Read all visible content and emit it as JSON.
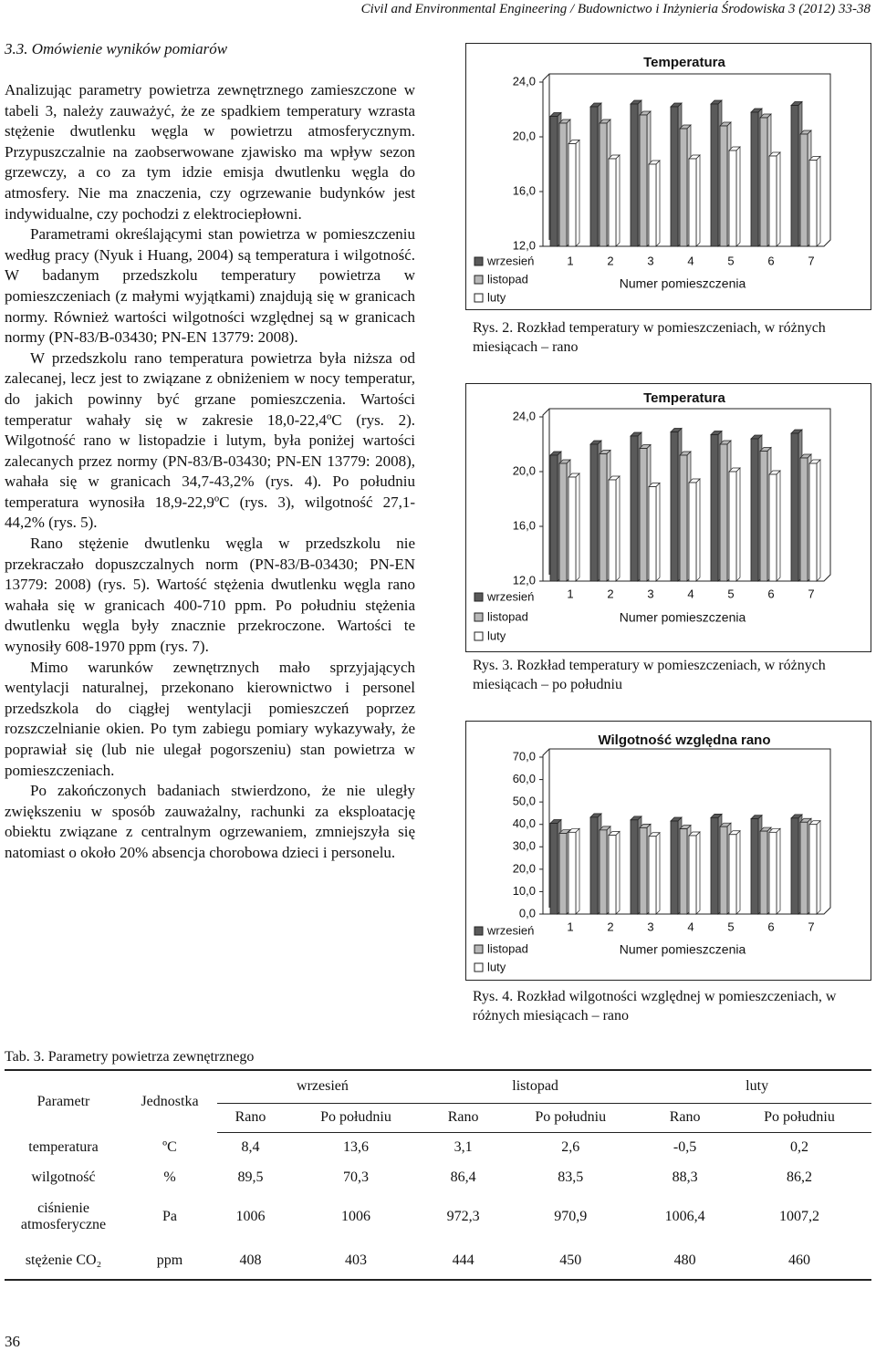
{
  "header": "Civil and Environmental Engineering / Budownictwo i Inżynieria Środowiska 3 (2012) 33-38",
  "section_title": "3.3. Omówienie wyników pomiarów",
  "paragraphs": [
    "Analizując parametry powietrza zewnętrznego zamieszczone w tabeli 3, należy zauważyć, że ze spadkiem temperatury wzrasta stężenie dwutlenku węgla w powietrzu atmosferycznym. Przypuszczalnie na zaobserwowane zjawisko ma wpływ sezon grzewczy, a co za tym idzie emisja dwutlenku węgla do atmosfery. Nie ma znaczenia, czy ogrzewanie budynków jest indywidualne, czy pochodzi z elektrociepłowni.",
    "Parametrami określającymi stan powietrza w pomieszczeniu według pracy (Nyuk i Huang, 2004) są temperatura i wilgotność. W badanym przedszkolu temperatury powietrza w pomieszczeniach (z małymi wyjątkami) znajdują się w granicach normy. Również wartości wilgotności względnej są w granicach normy (PN-83/B-03430; PN-EN 13779: 2008).",
    "W przedszkolu rano temperatura powietrza była niższa od zalecanej, lecz jest to związane z obniżeniem w nocy temperatur, do jakich powinny być grzane pomieszczenia. Wartości temperatur wahały się w zakresie 18,0-22,4ºC (rys. 2). Wilgotność rano w listopadzie i lutym, była poniżej wartości zalecanych przez normy (PN-83/B-03430; PN-EN 13779: 2008), wahała się w granicach 34,7-43,2% (rys. 4). Po południu temperatura wynosiła 18,9-22,9ºC (rys. 3), wilgotność 27,1-44,2% (rys. 5).",
    "Rano stężenie dwutlenku węgla w przedszkolu nie przekraczało dopuszczalnych norm (PN-83/B-03430; PN-EN 13779: 2008) (rys. 5). Wartość stężenia dwutlenku węgla rano wahała się w granicach 400-710 ppm. Po południu stężenia dwutlenku węgla były znacznie przekroczone. Wartości te wynosiły 608-1970 ppm (rys. 7).",
    "Mimo warunków zewnętrznych mało sprzyjających wentylacji naturalnej, przekonano kierownictwo i personel przedszkola do ciągłej wentylacji pomieszczeń poprzez rozszczelnianie okien. Po tym zabiegu pomiary wykazywały, że poprawiał się (lub nie ulegał pogorszeniu) stan powietrza w pomieszczeniach.",
    "Po zakończonych badaniach stwierdzono, że nie uległy zwiększeniu w sposób zauważalny, rachunki za eksploatację obiektu związane z centralnym ogrzewaniem, zmniejszyła się natomiast o około 20% absencja chorobowa dzieci i personelu."
  ],
  "chart_data": [
    {
      "type": "bar",
      "title": "Temperatura",
      "x_label": "Numer pomieszczenia",
      "categories": [
        "1",
        "2",
        "3",
        "4",
        "5",
        "6",
        "7"
      ],
      "series": [
        {
          "name": "wrzesień",
          "color": "#5a5a5a",
          "values": [
            21.5,
            22.2,
            22.4,
            22.2,
            22.4,
            21.8,
            22.3
          ]
        },
        {
          "name": "listopad",
          "color": "#b8b8b8",
          "values": [
            21.0,
            21.0,
            21.6,
            20.6,
            20.8,
            21.4,
            20.2
          ]
        },
        {
          "name": "luty",
          "color": "#ffffff",
          "values": [
            19.5,
            18.4,
            18.0,
            18.4,
            19.0,
            18.6,
            18.3
          ]
        }
      ],
      "ylim": [
        12,
        24
      ],
      "yticks": [
        {
          "value": 12,
          "label": "12,0"
        },
        {
          "value": 16,
          "label": "16,0"
        },
        {
          "value": 20,
          "label": "20,0"
        },
        {
          "value": 24,
          "label": "24,0"
        }
      ],
      "grid": false
    },
    {
      "type": "bar",
      "title": "Temperatura",
      "x_label": "Numer pomieszczenia",
      "categories": [
        "1",
        "2",
        "3",
        "4",
        "5",
        "6",
        "7"
      ],
      "series": [
        {
          "name": "wrzesień",
          "color": "#5a5a5a",
          "values": [
            21.2,
            22.0,
            22.6,
            22.9,
            22.7,
            22.4,
            22.8
          ]
        },
        {
          "name": "listopad",
          "color": "#b8b8b8",
          "values": [
            20.6,
            21.3,
            21.7,
            21.2,
            22.0,
            21.5,
            21.0
          ]
        },
        {
          "name": "luty",
          "color": "#ffffff",
          "values": [
            19.6,
            19.4,
            18.9,
            19.2,
            20.0,
            19.8,
            20.6
          ]
        }
      ],
      "ylim": [
        12,
        24
      ],
      "yticks": [
        {
          "value": 12,
          "label": "12,0"
        },
        {
          "value": 16,
          "label": "16,0"
        },
        {
          "value": 20,
          "label": "20,0"
        },
        {
          "value": 24,
          "label": "24,0"
        }
      ],
      "grid": false
    },
    {
      "type": "bar",
      "title": "Wilgotność względna rano",
      "x_label": "Numer pomieszczenia",
      "categories": [
        "1",
        "2",
        "3",
        "4",
        "5",
        "6",
        "7"
      ],
      "series": [
        {
          "name": "wrzesień",
          "color": "#5a5a5a",
          "values": [
            40.5,
            43.2,
            42.0,
            41.5,
            43.0,
            42.5,
            42.8
          ]
        },
        {
          "name": "listopad",
          "color": "#b8b8b8",
          "values": [
            36.0,
            37.5,
            38.5,
            38.0,
            39.0,
            37.0,
            41.0
          ]
        },
        {
          "name": "luty",
          "color": "#ffffff",
          "values": [
            36.5,
            35.2,
            34.7,
            35.0,
            35.5,
            36.5,
            40.0
          ]
        }
      ],
      "ylim": [
        0,
        70
      ],
      "yticks": [
        {
          "value": 0,
          "label": "0,0"
        },
        {
          "value": 10,
          "label": "10,0"
        },
        {
          "value": 20,
          "label": "20,0"
        },
        {
          "value": 30,
          "label": "30,0"
        },
        {
          "value": 40,
          "label": "40,0"
        },
        {
          "value": 50,
          "label": "50,0"
        },
        {
          "value": 60,
          "label": "60,0"
        },
        {
          "value": 70,
          "label": "70,0"
        }
      ],
      "grid": false
    }
  ],
  "figure_captions": [
    "Rys. 2. Rozkład temperatury w pomieszczeniach, w różnych miesiącach – rano",
    "Rys. 3. Rozkład temperatury w pomieszczeniach, w różnych miesiącach – po południu",
    "Rys. 4. Rozkład wilgotności względnej w pomieszczeniach, w różnych miesiącach – rano"
  ],
  "table": {
    "caption": "Tab. 3. Parametry powietrza zewnętrznego",
    "headers": [
      "Parametr",
      "Jednostka"
    ],
    "months": [
      "wrzesień",
      "listopad",
      "luty"
    ],
    "times": [
      "Rano",
      "Po południu",
      "Rano",
      "Po południu",
      "Rano",
      "Po południu"
    ],
    "rows": [
      [
        "temperatura",
        "ºC",
        "8,4",
        "13,6",
        "3,1",
        "2,6",
        "-0,5",
        "0,2"
      ],
      [
        "wilgotność",
        "%",
        "89,5",
        "70,3",
        "86,4",
        "83,5",
        "88,3",
        "86,2"
      ],
      [
        "ciśnienie atmosferyczne",
        "Pa",
        "1006",
        "1006",
        "972,3",
        "970,9",
        "1006,4",
        "1007,2"
      ],
      [
        "stężenie CO₂",
        "ppm",
        "408",
        "403",
        "444",
        "450",
        "480",
        "460"
      ]
    ]
  },
  "page_number": "36"
}
